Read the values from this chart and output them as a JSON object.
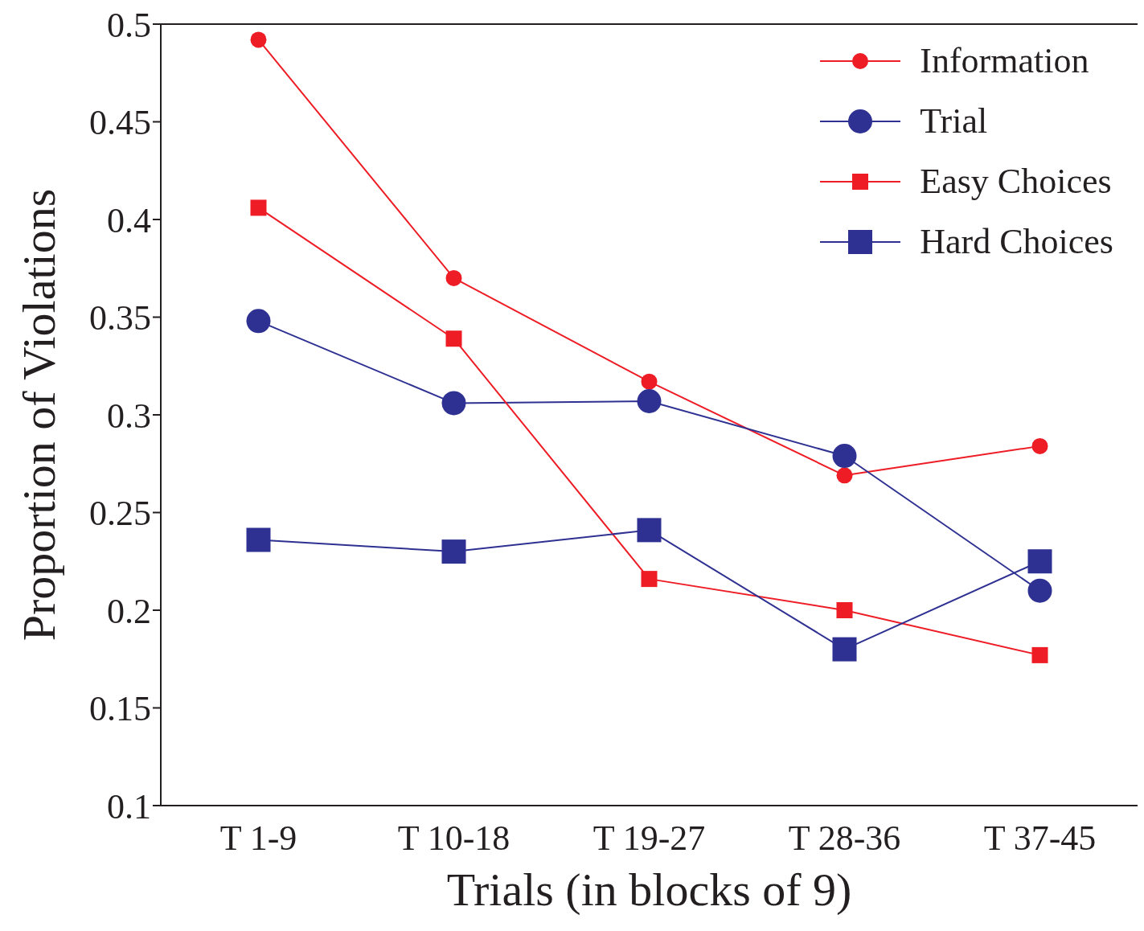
{
  "chart_data": {
    "type": "line",
    "xlabel": "Trials (in blocks of 9)",
    "ylabel": "Proportion of Violations",
    "categories": [
      "T 1-9",
      "T 10-18",
      "T 19-27",
      "T 28-36",
      "T 37-45"
    ],
    "series": [
      {
        "name": "Information",
        "color": "#ee1c25",
        "marker": "circle",
        "values": [
          0.492,
          0.37,
          0.317,
          0.269,
          0.284
        ]
      },
      {
        "name": "Trial",
        "color": "#2e3192",
        "marker": "circle",
        "values": [
          0.348,
          0.306,
          0.307,
          0.279,
          0.21
        ]
      },
      {
        "name": "Easy Choices",
        "color": "#ee1c25",
        "marker": "square",
        "values": [
          0.406,
          0.339,
          0.216,
          0.2,
          0.177
        ]
      },
      {
        "name": "Hard Choices",
        "color": "#2e3192",
        "marker": "square",
        "values": [
          0.236,
          0.23,
          0.241,
          0.18,
          0.225
        ]
      }
    ],
    "ylim": [
      0.1,
      0.5
    ],
    "yticks": [
      0.1,
      0.15,
      0.2,
      0.25,
      0.3,
      0.35,
      0.4,
      0.45,
      0.5
    ],
    "grid": false,
    "legend": "top right",
    "line_style": "solid"
  }
}
